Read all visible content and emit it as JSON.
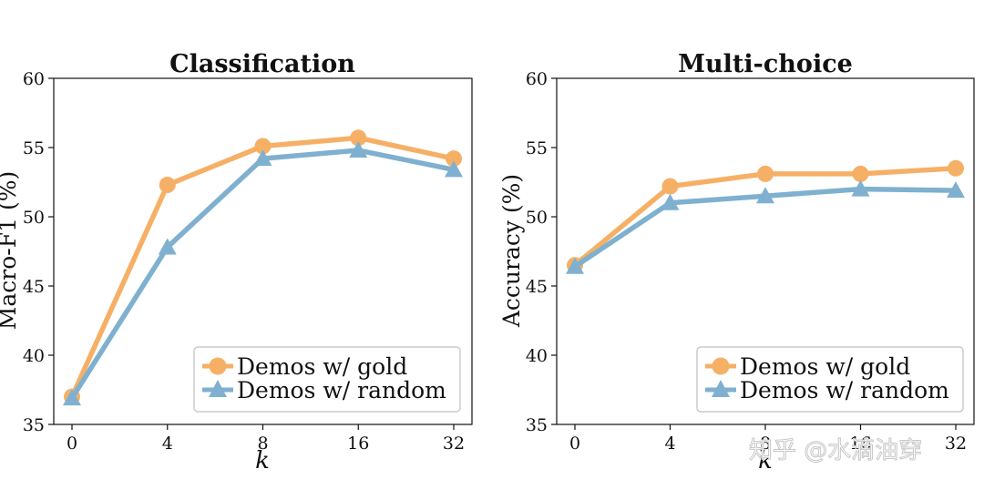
{
  "watermark": "知乎 @水滴油穿",
  "colors": {
    "gold": "#f5b066",
    "random": "#7fb0cf",
    "axis": "#111111",
    "legend_border": "#cccccc"
  },
  "legend_icons": {
    "gold": "circle-marker",
    "random": "triangle-marker"
  },
  "chart_data": [
    {
      "type": "line",
      "title": "Classification",
      "xlabel": "k",
      "ylabel": "Macro-F1 (%)",
      "categories": [
        "0",
        "4",
        "8",
        "16",
        "32"
      ],
      "ylim": [
        35,
        60
      ],
      "yticks": [
        35,
        40,
        45,
        50,
        55,
        60
      ],
      "legend_position": "lower-right",
      "series": [
        {
          "name": "Demos w/ gold",
          "marker": "circle",
          "values": [
            37.0,
            52.3,
            55.1,
            55.7,
            54.2
          ]
        },
        {
          "name": "Demos w/ random",
          "marker": "triangle",
          "values": [
            36.9,
            47.8,
            54.2,
            54.8,
            53.4
          ]
        }
      ]
    },
    {
      "type": "line",
      "title": "Multi-choice",
      "xlabel": "k",
      "ylabel": "Accuracy (%)",
      "categories": [
        "0",
        "4",
        "8",
        "16",
        "32"
      ],
      "ylim": [
        35,
        60
      ],
      "yticks": [
        35,
        40,
        45,
        50,
        55,
        60
      ],
      "legend_position": "lower-right",
      "series": [
        {
          "name": "Demos w/ gold",
          "marker": "circle",
          "values": [
            46.5,
            52.2,
            53.1,
            53.1,
            53.5
          ]
        },
        {
          "name": "Demos w/ random",
          "marker": "triangle",
          "values": [
            46.4,
            51.0,
            51.5,
            52.0,
            51.9
          ]
        }
      ]
    }
  ]
}
